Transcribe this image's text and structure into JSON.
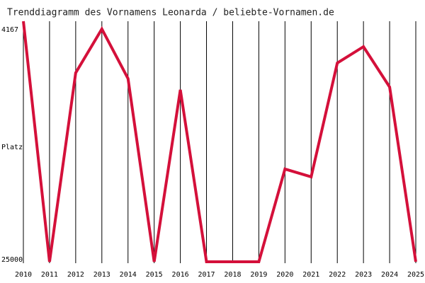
{
  "chart_data": {
    "type": "line",
    "title": "Trenddiagramm des Vornamens Leonarda / beliebte-Vornamen.de",
    "ylabel": "Platz",
    "x": [
      2010,
      2011,
      2012,
      2013,
      2014,
      2015,
      2016,
      2017,
      2018,
      2019,
      2020,
      2021,
      2022,
      2023,
      2024,
      2025
    ],
    "series": [
      {
        "name": "Leonarda",
        "color": "#d4103a",
        "values": [
          3470,
          25000,
          8092,
          4167,
          8600,
          25000,
          9611,
          25000,
          25000,
          25000,
          16700,
          17397,
          7206,
          5750,
          9358,
          25000
        ]
      }
    ],
    "ylim": [
      25000,
      4167
    ],
    "yticks": [
      4167,
      25000
    ],
    "grid": true
  }
}
